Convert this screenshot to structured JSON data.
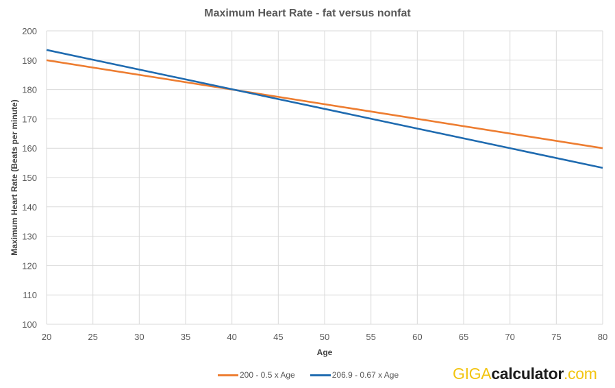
{
  "chart_data": {
    "type": "line",
    "title": "Maximum Heart Rate - fat versus nonfat",
    "xlabel": "Age",
    "ylabel": "Maximum Heart Rate (Beats per minute)",
    "xlim": [
      20,
      80
    ],
    "ylim": [
      100,
      200
    ],
    "x_ticks": [
      20,
      25,
      30,
      35,
      40,
      45,
      50,
      55,
      60,
      65,
      70,
      75,
      80
    ],
    "y_ticks": [
      100,
      110,
      120,
      130,
      140,
      150,
      160,
      170,
      180,
      190,
      200
    ],
    "grid": true,
    "legend_position": "bottom",
    "series": [
      {
        "name": "200 - 0.5 x Age",
        "color": "#ed7d31",
        "x": [
          20,
          80
        ],
        "y": [
          190,
          160
        ]
      },
      {
        "name": "206.9 - 0.67 x Age",
        "color": "#1f6bb0",
        "x": [
          20,
          80
        ],
        "y": [
          193.5,
          153.3
        ]
      }
    ]
  },
  "watermark": {
    "part1": "GIGA",
    "part2": "calculator",
    "part3": ".com"
  }
}
